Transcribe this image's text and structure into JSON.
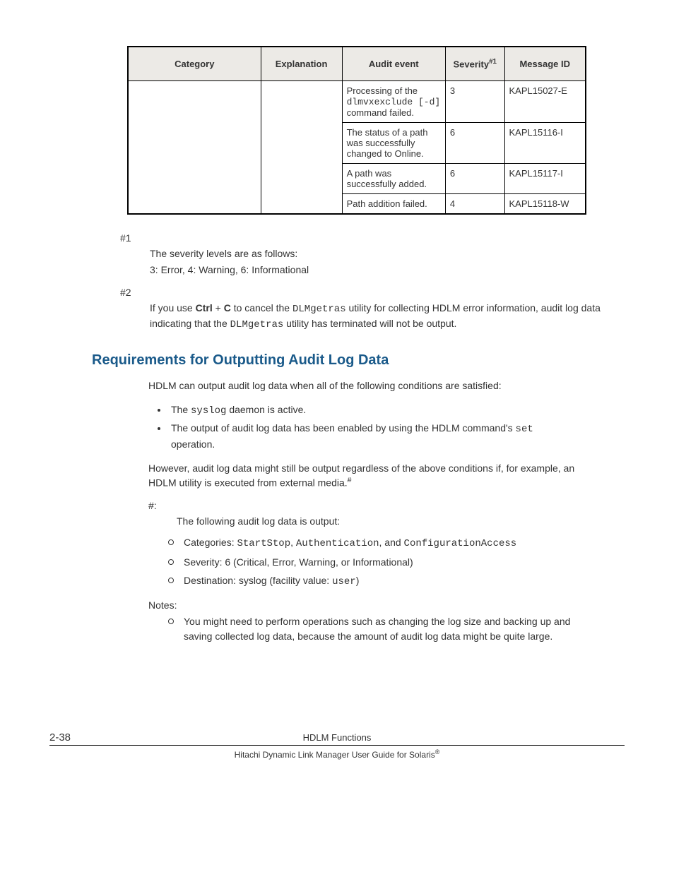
{
  "table": {
    "headers": {
      "category": "Category",
      "explanation": "Explanation",
      "audit_event": "Audit event",
      "severity_pre": "Severity",
      "severity_sup": "#1",
      "message_id": "Message ID"
    },
    "rows": [
      {
        "audit_pre": "Processing of the ",
        "audit_code": "dlmvxexclude [-d]",
        "audit_post": " command failed.",
        "severity": "3",
        "msg": "KAPL15027-E"
      },
      {
        "audit_pre": "The status of a path was successfully changed to Online.",
        "audit_code": "",
        "audit_post": "",
        "severity": "6",
        "msg": "KAPL15116-I"
      },
      {
        "audit_pre": "A path was successfully added.",
        "audit_code": "",
        "audit_post": "",
        "severity": "6",
        "msg": "KAPL15117-I"
      },
      {
        "audit_pre": "Path addition failed.",
        "audit_code": "",
        "audit_post": "",
        "severity": "4",
        "msg": "KAPL15118-W"
      }
    ]
  },
  "notes": {
    "n1_label": "#1",
    "n1_line1": "The severity levels are as follows:",
    "n1_line2": "3: Error, 4: Warning, 6: Informational",
    "n2_label": "#2",
    "n2_pre": "If you use ",
    "n2_ctrl": "Ctrl",
    "n2_plus": " + ",
    "n2_c": "C",
    "n2_mid": " to cancel the ",
    "n2_code1": "DLMgetras",
    "n2_mid2": " utility for collecting HDLM error information, audit log data indicating that the ",
    "n2_code2": "DLMgetras",
    "n2_end": " utility has terminated will not be output."
  },
  "section": {
    "heading": "Requirements for Outputting Audit Log Data",
    "intro": "HDLM can output audit log data when all of the following conditions are satisfied:",
    "bul1_pre": "The ",
    "bul1_code": "syslog",
    "bul1_post": " daemon is active.",
    "bul2_pre": "The output of audit log data has been enabled by using the HDLM command's ",
    "bul2_code": "set",
    "bul2_post": " operation.",
    "however_pre": "However, audit log data might still be output regardless of the above conditions if, for example, an HDLM utility is executed from external media.",
    "however_sup": "#",
    "hash_label": "#:",
    "hash_intro": "The following audit log data is output:",
    "c1_pre": "Categories: ",
    "c1_a": "StartStop",
    "c1_s1": ", ",
    "c1_b": "Authentication",
    "c1_s2": ", and ",
    "c1_c": "ConfigurationAccess",
    "c2": "Severity: 6 (Critical, Error, Warning, or Informational)",
    "c3_pre": "Destination: syslog (facility value: ",
    "c3_code": "user",
    "c3_post": ")",
    "notes_label": "Notes:",
    "notes_item": "You might need to perform operations such as changing the log size and backing up and saving collected log data, because the amount of audit log data might be quite large."
  },
  "footer": {
    "page": "2-38",
    "title": "HDLM Functions",
    "sub_pre": "Hitachi Dynamic Link Manager User Guide for Solaris",
    "sub_sup": "®"
  }
}
